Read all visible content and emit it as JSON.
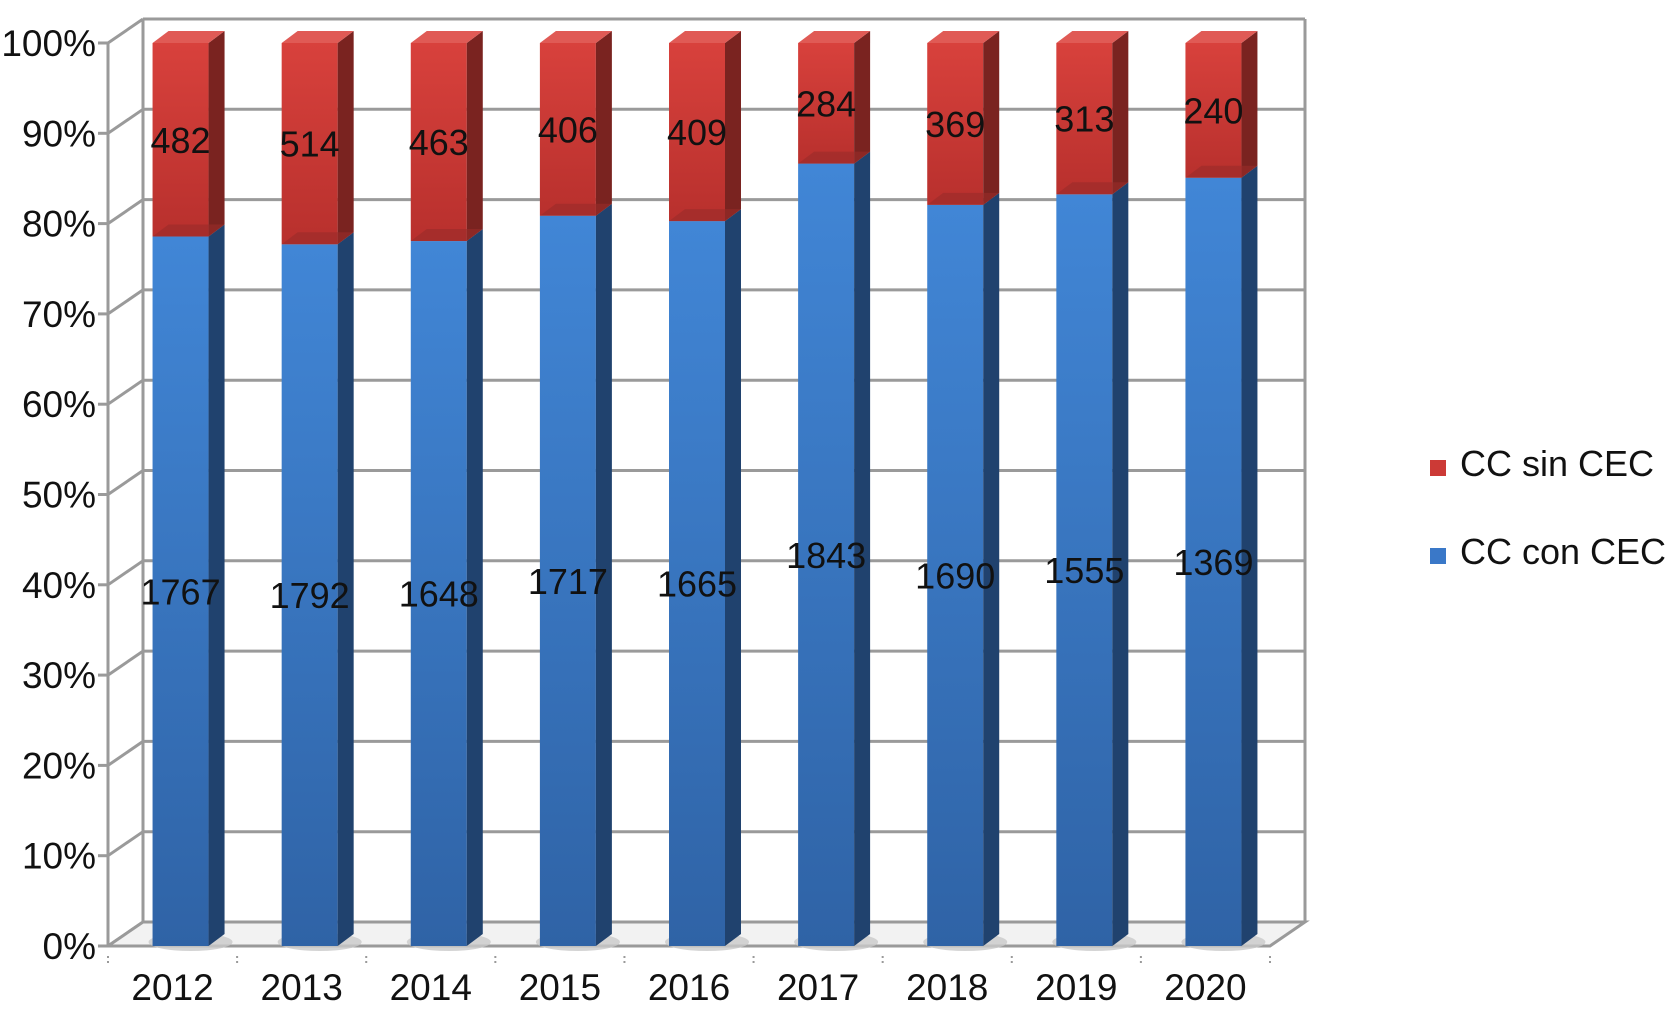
{
  "chart_data": {
    "type": "bar",
    "stacked": true,
    "normalized": true,
    "categories": [
      "2012",
      "2013",
      "2014",
      "2015",
      "2016",
      "2017",
      "2018",
      "2019",
      "2020"
    ],
    "series": [
      {
        "name": "CC con CEC",
        "values": [
          1767,
          1792,
          1648,
          1717,
          1665,
          1843,
          1690,
          1555,
          1369
        ],
        "color": "#3a78c8"
      },
      {
        "name": "CC sin CEC",
        "values": [
          482,
          514,
          463,
          406,
          409,
          284,
          369,
          313,
          240
        ],
        "color": "#cc3a36"
      }
    ],
    "y_tick_labels": [
      "0%",
      "10%",
      "20%",
      "30%",
      "40%",
      "50%",
      "60%",
      "70%",
      "80%",
      "90%",
      "100%"
    ],
    "ylim": [
      0,
      100
    ],
    "grid": true,
    "legend_position": "right"
  }
}
